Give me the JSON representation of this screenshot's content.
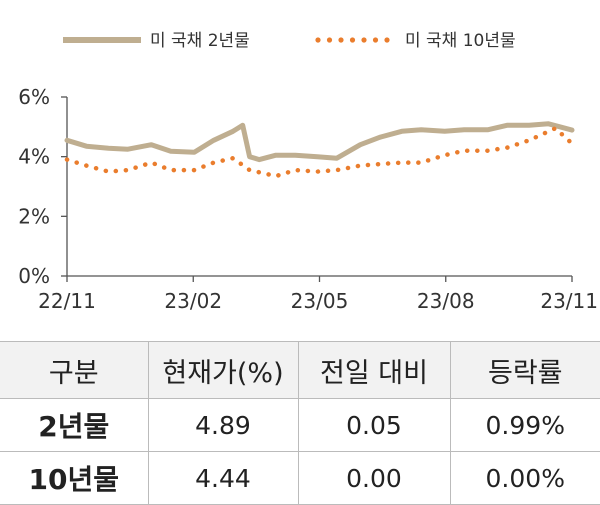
{
  "chart_data": {
    "type": "line",
    "x_ticks": [
      "22/11",
      "23/02",
      "23/05",
      "23/08",
      "23/11"
    ],
    "x_range": [
      "2022-11-01",
      "2023-11-01"
    ],
    "y_ticks": [
      "0%",
      "2%",
      "4%",
      "6%"
    ],
    "ylim": [
      0,
      6
    ],
    "grid": false,
    "legend_position": "top",
    "series": [
      {
        "name": "미 국채 2년물",
        "style": "solid",
        "color": "#bfae90",
        "points": [
          [
            "2022-11-01",
            4.55
          ],
          [
            "2022-11-15",
            4.35
          ],
          [
            "2022-12-01",
            4.28
          ],
          [
            "2022-12-15",
            4.25
          ],
          [
            "2023-01-01",
            4.4
          ],
          [
            "2023-01-15",
            4.18
          ],
          [
            "2023-02-01",
            4.15
          ],
          [
            "2023-02-15",
            4.55
          ],
          [
            "2023-03-01",
            4.85
          ],
          [
            "2023-03-08",
            5.05
          ],
          [
            "2023-03-13",
            4.0
          ],
          [
            "2023-03-20",
            3.9
          ],
          [
            "2023-04-01",
            4.05
          ],
          [
            "2023-04-15",
            4.05
          ],
          [
            "2023-05-01",
            4.0
          ],
          [
            "2023-05-15",
            3.95
          ],
          [
            "2023-06-01",
            4.4
          ],
          [
            "2023-06-15",
            4.65
          ],
          [
            "2023-07-01",
            4.85
          ],
          [
            "2023-07-15",
            4.9
          ],
          [
            "2023-08-01",
            4.85
          ],
          [
            "2023-08-15",
            4.9
          ],
          [
            "2023-09-01",
            4.9
          ],
          [
            "2023-09-15",
            5.05
          ],
          [
            "2023-10-01",
            5.05
          ],
          [
            "2023-10-15",
            5.1
          ],
          [
            "2023-11-01",
            4.89
          ]
        ]
      },
      {
        "name": "미 국채 10년물",
        "style": "dotted",
        "color": "#ea7d2d",
        "points": [
          [
            "2022-11-01",
            3.9
          ],
          [
            "2022-11-15",
            3.7
          ],
          [
            "2022-12-01",
            3.5
          ],
          [
            "2022-12-15",
            3.55
          ],
          [
            "2023-01-01",
            3.8
          ],
          [
            "2023-01-15",
            3.55
          ],
          [
            "2023-02-01",
            3.55
          ],
          [
            "2023-02-15",
            3.8
          ],
          [
            "2023-03-01",
            3.95
          ],
          [
            "2023-03-13",
            3.55
          ],
          [
            "2023-04-01",
            3.35
          ],
          [
            "2023-04-15",
            3.55
          ],
          [
            "2023-05-01",
            3.5
          ],
          [
            "2023-05-15",
            3.55
          ],
          [
            "2023-06-01",
            3.7
          ],
          [
            "2023-06-15",
            3.75
          ],
          [
            "2023-07-01",
            3.8
          ],
          [
            "2023-07-15",
            3.8
          ],
          [
            "2023-08-01",
            4.05
          ],
          [
            "2023-08-15",
            4.2
          ],
          [
            "2023-09-01",
            4.2
          ],
          [
            "2023-09-15",
            4.3
          ],
          [
            "2023-10-01",
            4.55
          ],
          [
            "2023-10-20",
            4.95
          ],
          [
            "2023-11-01",
            4.44
          ]
        ]
      }
    ]
  },
  "table": {
    "headers": [
      "구분",
      "현재가(%)",
      "전일 대비",
      "등락률"
    ],
    "rows": [
      [
        "2년물",
        "4.89",
        "0.05",
        "0.99%"
      ],
      [
        "10년물",
        "4.44",
        "0.00",
        "0.00%"
      ]
    ]
  }
}
